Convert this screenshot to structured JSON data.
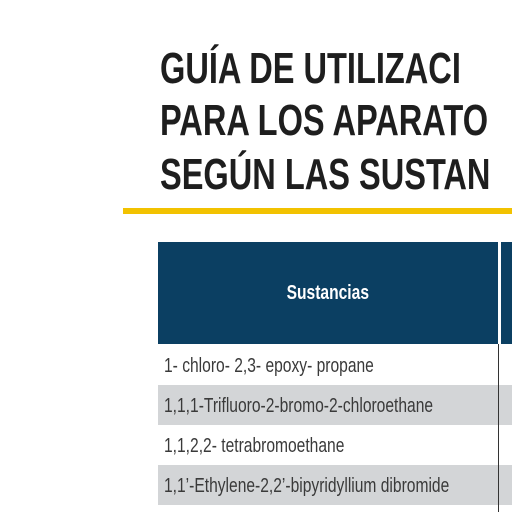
{
  "header": {
    "title_lines": [
      "GUÍA DE UTILIZACI",
      "PARA LOS APARATO",
      "SEGÚN LAS SUSTAN"
    ]
  },
  "table": {
    "columns": [
      "Sustancias"
    ],
    "rows": [
      [
        "1- chloro- 2,3- epoxy- propane"
      ],
      [
        "1,1,1-Trifluoro-2-bromo-2-chloroethane"
      ],
      [
        "1,1,2,2- tetrabromoethane"
      ],
      [
        "1,1’-Ethylene-2,2’-bipyridyllium  dibromide"
      ]
    ]
  }
}
